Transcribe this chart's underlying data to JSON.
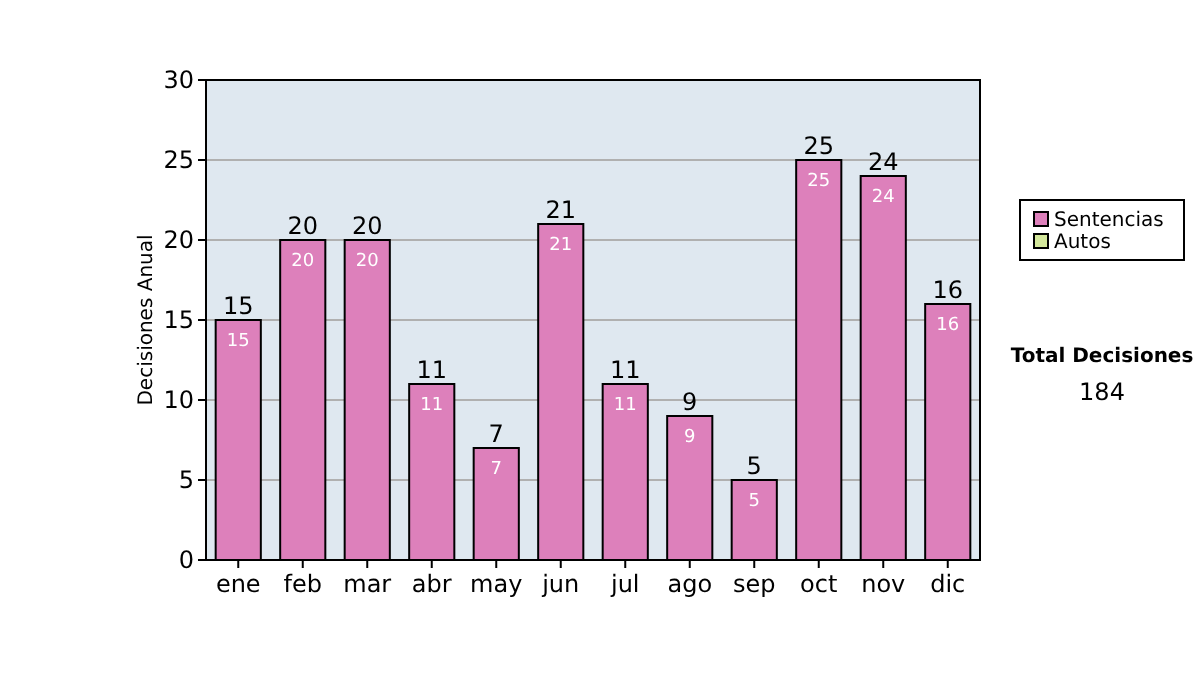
{
  "chart_data": {
    "type": "bar",
    "stacked": true,
    "ylabel": "Decisiones Anual",
    "categories": [
      "ene",
      "feb",
      "mar",
      "abr",
      "may",
      "jun",
      "jul",
      "ago",
      "sep",
      "oct",
      "nov",
      "dic"
    ],
    "series": [
      {
        "name": "Sentencias",
        "color": "#dd80bb",
        "values": [
          15,
          20,
          20,
          11,
          7,
          21,
          11,
          9,
          5,
          25,
          24,
          16
        ],
        "value_labels": [
          "15",
          "20",
          "20",
          "11",
          "7",
          "21",
          "11",
          "9",
          "5",
          "25",
          "24",
          "16"
        ]
      },
      {
        "name": "Autos",
        "color": "#d4e89c",
        "values": [
          0,
          0,
          0,
          0,
          0,
          0,
          0,
          0,
          0,
          0,
          0,
          0
        ]
      }
    ],
    "totals": [
      "15",
      "20",
      "20",
      "11",
      "7",
      "21",
      "11",
      "9",
      "5",
      "25",
      "24",
      "16"
    ],
    "ylim": [
      0,
      30
    ],
    "yticks": [
      0,
      5,
      10,
      15,
      20,
      25,
      30
    ],
    "grid": "y",
    "legend": "right",
    "annotations": [
      "Total Decisiones",
      "184"
    ]
  }
}
